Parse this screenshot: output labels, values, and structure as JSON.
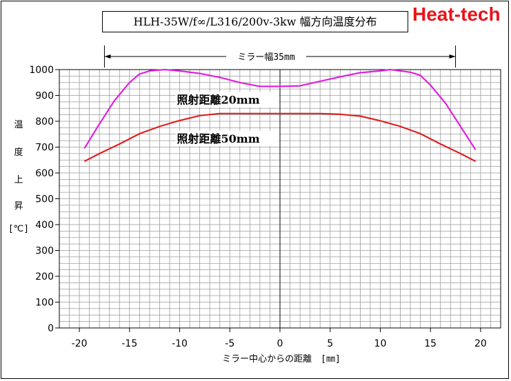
{
  "header": {
    "title": "HLH-35W/f∞/L316/200v-3kw 幅方向温度分布",
    "brand": "Heat-tech"
  },
  "chart_data": {
    "type": "line",
    "title": "HLH-35W/f∞/L316/200v-3kw 幅方向温度分布",
    "xlabel": "ミラー中心からの距離　[㎜]",
    "ylabel_chars": [
      "温",
      "度",
      "上",
      "昇",
      "[℃]"
    ],
    "xlim": [
      -22,
      22
    ],
    "ylim": [
      0,
      1000
    ],
    "xticks": [
      -20,
      -15,
      -10,
      -5,
      0,
      5,
      10,
      15,
      20
    ],
    "yticks": [
      0,
      100,
      200,
      300,
      400,
      500,
      600,
      700,
      800,
      900,
      1000
    ],
    "grid": true,
    "dimension": {
      "label": "ミラー幅35mm",
      "from": -17.5,
      "to": 17.5
    },
    "series": [
      {
        "name": "照射距離20mm",
        "color": "#e020e0",
        "x": [
          -19.5,
          -18,
          -16.5,
          -15,
          -14,
          -13,
          -11.5,
          -10,
          -8,
          -6,
          -4,
          -2,
          0,
          2,
          4,
          6,
          8,
          10,
          11,
          13,
          14,
          15,
          16.5,
          18,
          19.5
        ],
        "y": [
          695,
          790,
          880,
          950,
          983,
          995,
          1000,
          995,
          985,
          970,
          950,
          935,
          935,
          937,
          955,
          972,
          988,
          995,
          1000,
          990,
          978,
          940,
          870,
          780,
          690
        ]
      },
      {
        "name": "照射距離50mm",
        "color": "#e02020",
        "x": [
          -19.5,
          -18,
          -16,
          -14,
          -12,
          -10,
          -8,
          -6,
          -4,
          -2,
          0,
          2,
          4,
          6,
          8,
          10,
          12,
          14,
          16,
          18,
          19.5
        ],
        "y": [
          645,
          675,
          712,
          752,
          780,
          803,
          822,
          830,
          830,
          830,
          830,
          830,
          830,
          827,
          820,
          802,
          780,
          752,
          712,
          675,
          645
        ]
      }
    ],
    "annotations": [
      {
        "text": "照射距離20mm",
        "x": -10,
        "y": 900
      },
      {
        "text": "照射距離50mm",
        "x": -10,
        "y": 750
      }
    ]
  }
}
